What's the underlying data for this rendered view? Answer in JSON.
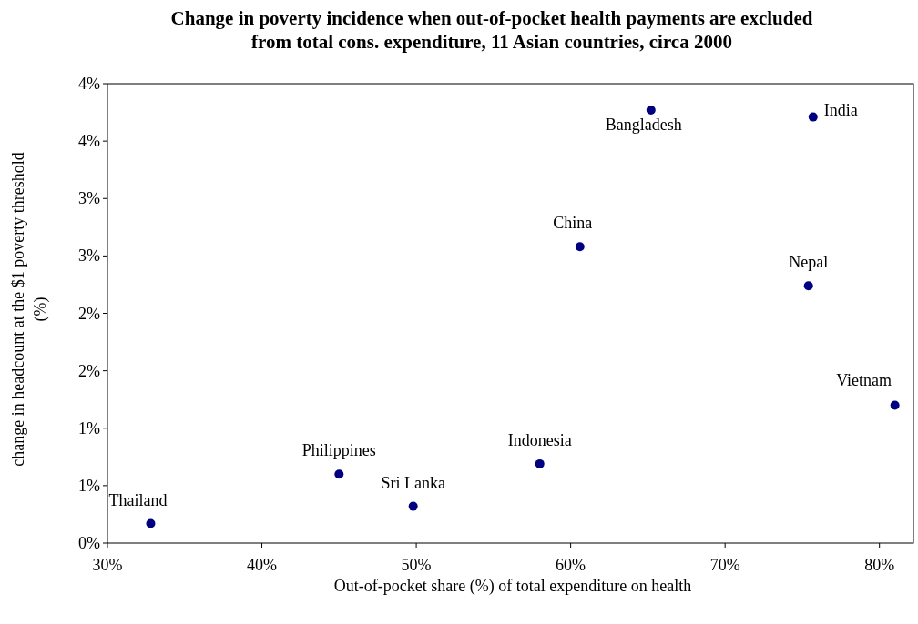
{
  "chart_data": {
    "type": "scatter",
    "title": "Change in poverty incidence when out-of-pocket health payments are excluded from total cons. expenditure, 11 Asian countries, circa 2000",
    "xlabel": "Out-of-pocket share (%) of total expenditure on health",
    "ylabel": "change in headcount at the $1 poverty threshold (%)",
    "x": [
      32.8,
      45.0,
      49.8,
      58.0,
      60.6,
      65.2,
      75.7,
      75.4,
      81.0
    ],
    "series": [
      {
        "color": "#000080",
        "values": [
          0.17,
          0.6,
          0.32,
          0.69,
          2.58,
          3.77,
          3.71,
          2.24,
          1.2
        ]
      }
    ],
    "annotations": [
      {
        "text": "Thailand",
        "x": 32.8,
        "y": 0.17
      },
      {
        "text": "Philippines",
        "x": 45.0,
        "y": 0.6
      },
      {
        "text": "Sri Lanka",
        "x": 49.8,
        "y": 0.32
      },
      {
        "text": "Indonesia",
        "x": 58.0,
        "y": 0.69
      },
      {
        "text": "China",
        "x": 60.6,
        "y": 2.58
      },
      {
        "text": "Bangladesh",
        "x": 65.2,
        "y": 3.77
      },
      {
        "text": "India",
        "x": 75.7,
        "y": 3.71
      },
      {
        "text": "Nepal",
        "x": 75.4,
        "y": 2.24
      },
      {
        "text": "Vietnam",
        "x": 81.0,
        "y": 1.2
      }
    ],
    "xlim": [
      30,
      82.2
    ],
    "xticks": [
      {
        "value": 30,
        "label": "30%"
      },
      {
        "value": 40,
        "label": "40%"
      },
      {
        "value": 50,
        "label": "50%"
      },
      {
        "value": 60,
        "label": "60%"
      },
      {
        "value": 70,
        "label": "70%"
      },
      {
        "value": 80,
        "label": "80%"
      }
    ],
    "ylim": [
      0,
      4
    ],
    "yticks": [
      {
        "value": 0,
        "label": "0%"
      },
      {
        "value": 0.5,
        "label": "1%"
      },
      {
        "value": 1,
        "label": "1%"
      },
      {
        "value": 1.5,
        "label": "2%"
      },
      {
        "value": 2,
        "label": "2%"
      },
      {
        "value": 2.5,
        "label": "3%"
      },
      {
        "value": 3,
        "label": "3%"
      },
      {
        "value": 3.5,
        "label": "4%"
      },
      {
        "value": 4,
        "label": "4%"
      }
    ],
    "grid": false,
    "marker": "circle"
  }
}
